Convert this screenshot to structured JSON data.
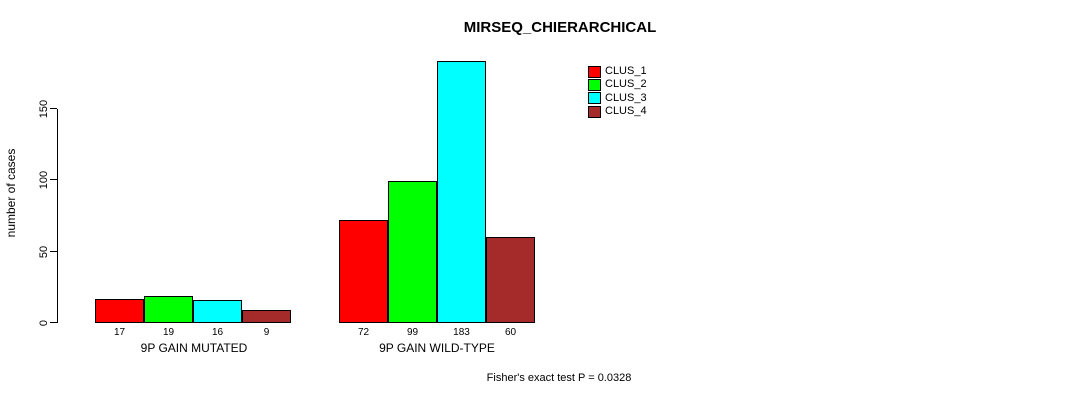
{
  "chart_data": {
    "type": "bar",
    "title": "MIRSEQ_CHIERARCHICAL",
    "ylabel": "number of cases",
    "xlabel": "",
    "categories": [
      "9P GAIN MUTATED",
      "9P GAIN WILD-TYPE"
    ],
    "series": [
      {
        "name": "CLUS_1",
        "color": "#FF0000",
        "values": [
          17,
          72
        ]
      },
      {
        "name": "CLUS_2",
        "color": "#00FF00",
        "values": [
          19,
          99
        ]
      },
      {
        "name": "CLUS_3",
        "color": "#00FFFF",
        "values": [
          16,
          183
        ]
      },
      {
        "name": "CLUS_4",
        "color": "#A52A2A",
        "values": [
          9,
          60
        ]
      }
    ],
    "yticks": [
      0,
      50,
      100,
      150
    ],
    "ylim": [
      0,
      183
    ],
    "grid": false,
    "legend_position": "top-right",
    "bar_value_labels": true,
    "annotation": "Fisher's exact test P = 0.0328"
  }
}
